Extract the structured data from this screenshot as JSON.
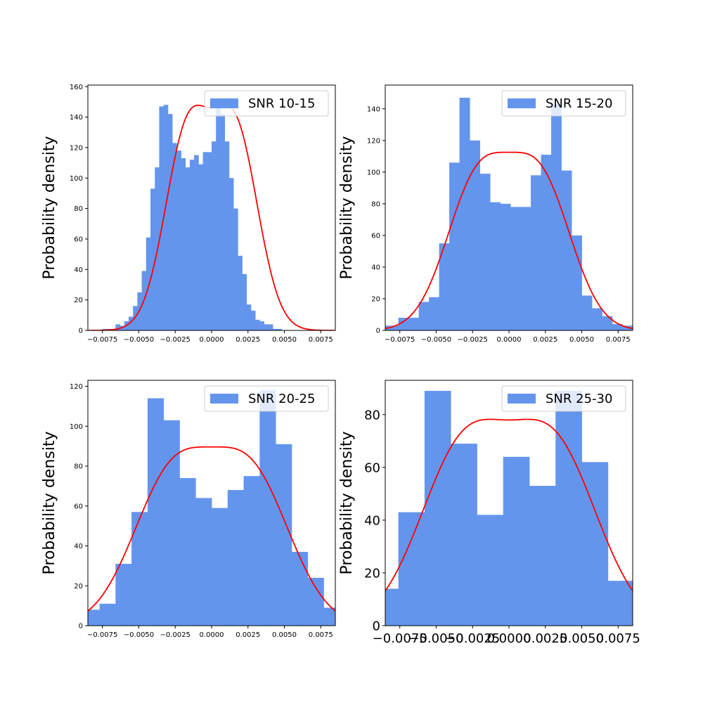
{
  "colors": {
    "bar": "#6495ed",
    "curve": "#ff0000",
    "axes": "#000000",
    "background": "#ffffff"
  },
  "chart_data": [
    {
      "type": "bar",
      "legend": "SNR 10-15",
      "ylabel": "Probability density",
      "xlim": [
        -0.0085,
        0.0085
      ],
      "ylim": [
        0,
        161
      ],
      "xticks": [
        -0.0075,
        -0.005,
        -0.0025,
        0.0,
        0.0025,
        0.005,
        0.0075
      ],
      "xtick_labels": [
        "−0.0075",
        "−0.0050",
        "−0.0025",
        "0.0000",
        "0.0025",
        "0.0050",
        "0.0075"
      ],
      "yticks": [
        0,
        20,
        40,
        60,
        80,
        100,
        120,
        140,
        160
      ],
      "ytick_labels": [
        "0",
        "20",
        "40",
        "60",
        "80",
        "100",
        "120",
        "140",
        "160"
      ],
      "tick_font": 10,
      "bin_edges": [
        -0.0075,
        -0.0072,
        -0.0069,
        -0.0066,
        -0.0063,
        -0.006,
        -0.0057,
        -0.0054,
        -0.0051,
        -0.0048,
        -0.0045,
        -0.0042,
        -0.0039,
        -0.0036,
        -0.0033,
        -0.003,
        -0.0027,
        -0.0024,
        -0.0021,
        -0.0018,
        -0.0015,
        -0.0012,
        -0.0009,
        -0.0006,
        -0.0003,
        0.0,
        0.0003,
        0.0006,
        0.0009,
        0.0012,
        0.0015,
        0.0018,
        0.0021,
        0.0024,
        0.0027,
        0.003,
        0.0033,
        0.0036,
        0.0039,
        0.0042,
        0.0045,
        0.0048,
        0.0051,
        0.0054,
        0.0057,
        0.006,
        0.0063,
        0.0066,
        0.0069
      ],
      "values": [
        1,
        1,
        0,
        4,
        3,
        6,
        9,
        16,
        25,
        39,
        61,
        93,
        107,
        147,
        148,
        142,
        123,
        118,
        113,
        107,
        112,
        115,
        109,
        117,
        117,
        124,
        152,
        142,
        124,
        100,
        80,
        49,
        37,
        17,
        13,
        7,
        6,
        4,
        4,
        1,
        1,
        0,
        0,
        0,
        0,
        0,
        0,
        0
      ],
      "kde": {
        "mu": 0.00165,
        "sigma": 0.00155
      }
    },
    {
      "type": "bar",
      "legend": "SNR 15-20",
      "ylabel": "Probability density",
      "xlim": [
        -0.0085,
        0.0085
      ],
      "ylim": [
        0,
        155
      ],
      "xticks": [
        -0.0075,
        -0.005,
        -0.0025,
        0.0,
        0.0025,
        0.005,
        0.0075
      ],
      "xtick_labels": [
        "−0.0075",
        "−0.0050",
        "−0.0025",
        "0.0000",
        "0.0025",
        "0.0050",
        "0.0075"
      ],
      "yticks": [
        0,
        20,
        40,
        60,
        80,
        100,
        120,
        140
      ],
      "ytick_labels": [
        "0",
        "20",
        "40",
        "60",
        "80",
        "100",
        "120",
        "140"
      ],
      "tick_font": 10,
      "bin_edges": [
        -0.0085,
        -0.0076,
        -0.0069,
        -0.0062,
        -0.0055,
        -0.0048,
        -0.0041,
        -0.0034,
        -0.0027,
        -0.002,
        -0.0013,
        -0.0006,
        0.0001,
        0.0008,
        0.0015,
        0.0022,
        0.0029,
        0.0036,
        0.0043,
        0.005,
        0.0057,
        0.0064,
        0.0071,
        0.0078,
        0.0085
      ],
      "values": [
        3,
        8,
        8,
        18,
        21,
        55,
        106,
        147,
        120,
        99,
        81,
        80,
        78,
        78,
        98,
        111,
        143,
        101,
        60,
        22,
        14,
        9,
        4,
        3
      ],
      "kde": {
        "mu": 0.00215,
        "sigma": 0.00215
      }
    },
    {
      "type": "bar",
      "legend": "SNR 20-25",
      "ylabel": "Probability density",
      "xlim": [
        -0.0085,
        0.0085
      ],
      "ylim": [
        0,
        123
      ],
      "xticks": [
        -0.0075,
        -0.005,
        -0.0025,
        0.0,
        0.0025,
        0.005,
        0.0075
      ],
      "xtick_labels": [
        "−0.0075",
        "−0.0050",
        "−0.0025",
        "0.0000",
        "0.0025",
        "0.0050",
        "0.0075"
      ],
      "yticks": [
        0,
        20,
        40,
        60,
        80,
        100,
        120
      ],
      "ytick_labels": [
        "0",
        "20",
        "40",
        "60",
        "80",
        "100",
        "120"
      ],
      "tick_font": 10,
      "bin_edges": [
        -0.0085,
        -0.0077,
        -0.0066,
        -0.0055,
        -0.0044,
        -0.0033,
        -0.0022,
        -0.0011,
        0.0,
        0.0011,
        0.0022,
        0.0033,
        0.0044,
        0.0055,
        0.0066,
        0.0077,
        0.0085
      ],
      "values": [
        8,
        11,
        31,
        57,
        114,
        103,
        74,
        64,
        59,
        68,
        75,
        118,
        91,
        37,
        24,
        9
      ],
      "kde": {
        "mu": 0.0027,
        "sigma": 0.0027
      }
    },
    {
      "type": "bar",
      "legend": "SNR 25-30",
      "ylabel": "Probability density",
      "xlim": [
        -0.0085,
        0.0085
      ],
      "ylim": [
        0,
        93
      ],
      "xticks": [
        -0.0075,
        -0.005,
        -0.0025,
        0.0,
        0.0025,
        0.005,
        0.0075
      ],
      "xtick_labels": [
        "−0.0075",
        "−0.0050",
        "−0.0025",
        "0.0000",
        "0.0025",
        "0.0050",
        "0.0075"
      ],
      "yticks": [
        0,
        20,
        40,
        60,
        80
      ],
      "ytick_labels": [
        "0",
        "20",
        "40",
        "60",
        "80"
      ],
      "tick_font": 18,
      "bin_edges": [
        -0.0085,
        -0.0076,
        -0.0058,
        -0.004,
        -0.0022,
        -0.0004,
        0.0014,
        0.0032,
        0.005,
        0.0068,
        0.0085
      ],
      "values": [
        14,
        43,
        89,
        69,
        42,
        64,
        53,
        89,
        62,
        17
      ],
      "kde": {
        "mu": 0.0031,
        "sigma": 0.003
      }
    }
  ]
}
